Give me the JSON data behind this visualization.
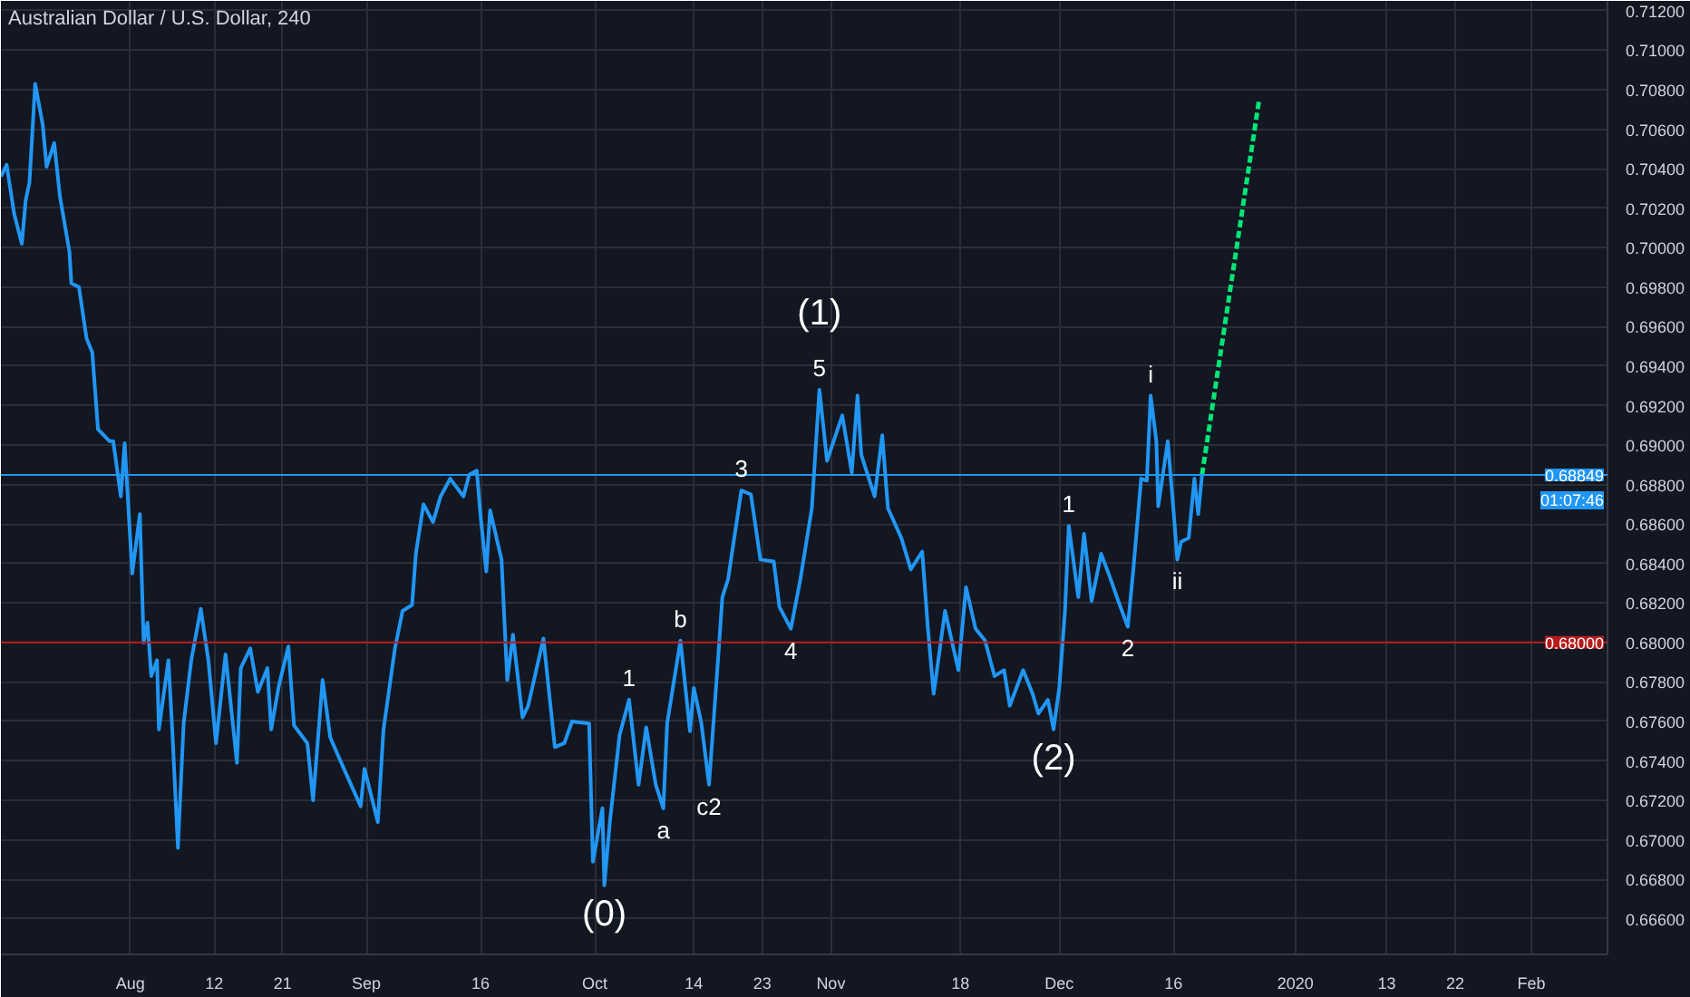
{
  "chart_data": {
    "type": "line",
    "title": "Australian Dollar / U.S. Dollar, 240",
    "xlim": [
      "2019-07-15",
      "2020-02-11"
    ],
    "xticks": [
      {
        "value": "2019-08-01",
        "label": "Aug"
      },
      {
        "value": "2019-08-12",
        "label": "12"
      },
      {
        "value": "2019-08-21",
        "label": "21"
      },
      {
        "value": "2019-09-01",
        "label": "Sep"
      },
      {
        "value": "2019-09-16",
        "label": "16"
      },
      {
        "value": "2019-10-01",
        "label": "Oct"
      },
      {
        "value": "2019-10-14",
        "label": "14"
      },
      {
        "value": "2019-10-23",
        "label": "23"
      },
      {
        "value": "2019-11-01",
        "label": "Nov"
      },
      {
        "value": "2019-11-18",
        "label": "18"
      },
      {
        "value": "2019-12-01",
        "label": "Dec"
      },
      {
        "value": "2019-12-16",
        "label": "16"
      },
      {
        "value": "2020-01-01",
        "label": "2020"
      },
      {
        "value": "2020-01-13",
        "label": "13"
      },
      {
        "value": "2020-01-22",
        "label": "22"
      },
      {
        "value": "2020-02-01",
        "label": "Feb"
      }
    ],
    "ylim": [
      0.6642,
      0.7125
    ],
    "yticks": [
      {
        "value": 0.666,
        "label": "0.66600"
      },
      {
        "value": 0.668,
        "label": "0.66800"
      },
      {
        "value": 0.67,
        "label": "0.67000"
      },
      {
        "value": 0.672,
        "label": "0.67200"
      },
      {
        "value": 0.674,
        "label": "0.67400"
      },
      {
        "value": 0.676,
        "label": "0.67600"
      },
      {
        "value": 0.678,
        "label": "0.67800"
      },
      {
        "value": 0.68,
        "label": "0.68000"
      },
      {
        "value": 0.682,
        "label": "0.68200"
      },
      {
        "value": 0.684,
        "label": "0.68400"
      },
      {
        "value": 0.686,
        "label": "0.68600"
      },
      {
        "value": 0.688,
        "label": "0.68800"
      },
      {
        "value": 0.69,
        "label": "0.69000"
      },
      {
        "value": 0.692,
        "label": "0.69200"
      },
      {
        "value": 0.694,
        "label": "0.69400"
      },
      {
        "value": 0.696,
        "label": "0.69600"
      },
      {
        "value": 0.698,
        "label": "0.69800"
      },
      {
        "value": 0.7,
        "label": "0.70000"
      },
      {
        "value": 0.702,
        "label": "0.70200"
      },
      {
        "value": 0.704,
        "label": "0.70400"
      },
      {
        "value": 0.706,
        "label": "0.70600"
      },
      {
        "value": 0.708,
        "label": "0.70800"
      },
      {
        "value": 0.71,
        "label": "0.71000"
      },
      {
        "value": 0.712,
        "label": "0.71200"
      }
    ],
    "grid": true,
    "series": [
      {
        "color": "#2196f3",
        "line_style": "solid",
        "x": [
          "2019-07-15T00:00",
          "2019-07-15T18:00",
          "2019-07-16T18:00",
          "2019-07-17T18:00",
          "2019-07-18T06:00",
          "2019-07-18T18:00",
          "2019-07-19T12:00",
          "2019-07-20T12:00",
          "2019-07-21T00:00",
          "2019-07-22T00:00",
          "2019-07-22T18:00",
          "2019-07-24T00:00",
          "2019-07-24T06:00",
          "2019-07-25T06:00",
          "2019-07-26T06:00",
          "2019-07-27T00:00",
          "2019-07-27T18:00",
          "2019-07-29T06:00",
          "2019-07-29T18:00",
          "2019-07-30T18:00",
          "2019-07-31T06:00",
          "2019-08-01T06:00",
          "2019-08-02T06:00",
          "2019-08-02T18:00",
          "2019-08-03T06:00",
          "2019-08-03T18:00",
          "2019-08-04T12:00",
          "2019-08-04T18:00",
          "2019-08-06T00:00",
          "2019-08-06T12:00",
          "2019-08-07T06:00",
          "2019-08-08T00:00",
          "2019-08-09T00:00",
          "2019-08-10T06:00",
          "2019-08-11T06:00",
          "2019-08-12T06:00",
          "2019-08-13T12:00",
          "2019-08-15T00:00",
          "2019-08-15T12:00",
          "2019-08-16T18:00",
          "2019-08-17T18:00",
          "2019-08-19T00:00",
          "2019-08-19T12:00",
          "2019-08-20T12:00",
          "2019-08-21T18:00",
          "2019-08-22T12:00",
          "2019-08-24T06:00",
          "2019-08-25T00:00",
          "2019-08-26T06:00",
          "2019-08-27T06:00",
          "2019-08-28T06:00",
          "2019-08-29T18:00",
          "2019-08-31T06:00",
          "2019-08-31T18:00",
          "2019-09-02T12:00",
          "2019-09-03T06:00",
          "2019-09-04T18:00",
          "2019-09-05T18:00",
          "2019-09-07T00:00",
          "2019-09-07T12:00",
          "2019-09-08T12:00",
          "2019-09-09T18:00",
          "2019-09-10T18:00",
          "2019-09-12T00:00",
          "2019-09-13T18:00",
          "2019-09-14T12:00",
          "2019-09-15T12:00",
          "2019-09-16T00:00",
          "2019-09-16T18:00",
          "2019-09-17T06:00",
          "2019-09-18T18:00",
          "2019-09-19T12:00",
          "2019-09-20T06:00",
          "2019-09-21T12:00",
          "2019-09-22T06:00",
          "2019-09-24T06:00",
          "2019-09-25T18:00",
          "2019-09-27T00:00",
          "2019-09-28T00:00",
          "2019-09-30T06:00",
          "2019-09-30T18:00",
          "2019-10-02T00:00",
          "2019-10-02T06:00",
          "2019-10-03T00:00",
          "2019-10-04T06:00",
          "2019-10-05T12:00",
          "2019-10-06T18:00",
          "2019-10-07T18:00",
          "2019-10-09T00:00",
          "2019-10-10T00:00",
          "2019-10-10T12:00",
          "2019-10-12T06:00",
          "2019-10-13T12:00",
          "2019-10-14T00:00",
          "2019-10-15T00:00",
          "2019-10-16T00:00",
          "2019-10-17T06:00",
          "2019-10-17T18:00",
          "2019-10-18T12:00",
          "2019-10-20T06:00",
          "2019-10-21T12:00",
          "2019-10-22T18:00",
          "2019-10-24T12:00",
          "2019-10-25T06:00",
          "2019-10-26T18:00",
          "2019-10-28T00:00",
          "2019-10-29T12:00",
          "2019-10-30T12:00",
          "2019-10-31T12:00",
          "2019-11-02T12:00",
          "2019-11-03T18:00",
          "2019-11-04T12:00",
          "2019-11-05T00:00",
          "2019-11-06T18:00",
          "2019-11-07T18:00",
          "2019-11-08T12:00",
          "2019-11-10T06:00",
          "2019-11-11T12:00",
          "2019-11-13T00:00",
          "2019-11-13T18:00",
          "2019-11-14T12:00",
          "2019-11-16T00:00",
          "2019-11-17T18:00",
          "2019-11-18T18:00",
          "2019-11-20T00:00",
          "2019-11-21T06:00",
          "2019-11-22T12:00",
          "2019-11-23T18:00",
          "2019-11-24T12:00",
          "2019-11-26T06:00",
          "2019-11-27T12:00",
          "2019-11-28T06:00",
          "2019-11-29T12:00",
          "2019-11-30T06:00",
          "2019-12-01T00:00",
          "2019-12-01T18:00",
          "2019-12-02T06:00",
          "2019-12-03T12:00",
          "2019-12-04T06:00",
          "2019-12-05T06:00",
          "2019-12-06T12:00",
          "2019-12-07T18:00",
          "2019-12-08T18:00",
          "2019-12-10T00:00",
          "2019-12-10T18:00",
          "2019-12-11T18:00",
          "2019-12-12T12:00",
          "2019-12-13T00:00",
          "2019-12-13T18:00",
          "2019-12-14T00:00",
          "2019-12-15T06:00",
          "2019-12-16T00:00",
          "2019-12-16T12:00",
          "2019-12-17T00:00",
          "2019-12-18T00:00",
          "2019-12-18T18:00",
          "2019-12-19T06:00",
          "2019-12-19T18:00"
        ],
        "values": [
          0.7036,
          0.7042,
          0.7017,
          0.7002,
          0.7024,
          0.7033,
          0.7083,
          0.7062,
          0.7041,
          0.7053,
          0.7026,
          0.6998,
          0.6982,
          0.698,
          0.6954,
          0.6947,
          0.6908,
          0.6902,
          0.6902,
          0.6874,
          0.6901,
          0.6835,
          0.6865,
          0.68,
          0.681,
          0.6783,
          0.6791,
          0.6756,
          0.6791,
          0.6756,
          0.6696,
          0.6759,
          0.6791,
          0.6817,
          0.6791,
          0.6749,
          0.6794,
          0.6739,
          0.6787,
          0.6797,
          0.6775,
          0.6787,
          0.6756,
          0.6778,
          0.6798,
          0.6758,
          0.6749,
          0.672,
          0.6781,
          0.6752,
          0.6743,
          0.673,
          0.6717,
          0.6736,
          0.6709,
          0.6756,
          0.6797,
          0.6816,
          0.6819,
          0.6845,
          0.687,
          0.6861,
          0.6874,
          0.6883,
          0.6874,
          0.6885,
          0.6887,
          0.6864,
          0.6836,
          0.6867,
          0.6842,
          0.6781,
          0.6804,
          0.6762,
          0.6768,
          0.6802,
          0.6747,
          0.6749,
          0.676,
          0.6759,
          0.6689,
          0.6716,
          0.6677,
          0.671,
          0.6753,
          0.6771,
          0.6728,
          0.6757,
          0.6728,
          0.6716,
          0.6759,
          0.6801,
          0.6755,
          0.6777,
          0.6759,
          0.6728,
          0.6795,
          0.6823,
          0.6832,
          0.6877,
          0.6875,
          0.6842,
          0.6841,
          0.6818,
          0.6807,
          0.6832,
          0.6868,
          0.6928,
          0.6892,
          0.6915,
          0.6886,
          0.6925,
          0.6895,
          0.6874,
          0.6905,
          0.6868,
          0.6853,
          0.6837,
          0.6846,
          0.6807,
          0.6774,
          0.6816,
          0.6786,
          0.6828,
          0.6807,
          0.6801,
          0.6783,
          0.6786,
          0.6768,
          0.6786,
          0.6774,
          0.6764,
          0.6771,
          0.6756,
          0.6777,
          0.6816,
          0.6859,
          0.6823,
          0.6855,
          0.6821,
          0.6845,
          0.6832,
          0.6821,
          0.6808,
          0.6838,
          0.6883,
          0.6882,
          0.6925,
          0.6902,
          0.6869,
          0.6902,
          0.6867,
          0.6842,
          0.6851,
          0.6853,
          0.6883,
          0.6865,
          0.6885
        ]
      },
      {
        "color": "#00e676",
        "line_style": "dashed",
        "x": [
          "2019-12-19T18:00",
          "2019-12-27T06:00"
        ],
        "values": [
          0.6885,
          0.7075
        ]
      }
    ],
    "ref_lines": [
      {
        "axis": "y",
        "value": 0.68849,
        "label": "0.68849",
        "color": "#2196f3"
      },
      {
        "axis": "y",
        "value": 0.68,
        "label": "0.68000",
        "color": "#b71c1c"
      }
    ],
    "annotations": [
      {
        "text": "(0)",
        "x": "2019-10-02T06:00",
        "y": 0.6677
      },
      {
        "text": "1",
        "x": "2019-10-05T12:00",
        "y": 0.6771
      },
      {
        "text": "a",
        "x": "2019-10-10T00:00",
        "y": 0.6716
      },
      {
        "text": "b",
        "x": "2019-10-12T06:00",
        "y": 0.6801
      },
      {
        "text": "c2",
        "x": "2019-10-16T00:00",
        "y": 0.6728
      },
      {
        "text": "3",
        "x": "2019-10-20T06:00",
        "y": 0.6877
      },
      {
        "text": "4",
        "x": "2019-10-26T18:00",
        "y": 0.6807
      },
      {
        "text": "5",
        "x": "2019-10-30T12:00",
        "y": 0.6928
      },
      {
        "text": "(1)",
        "x": "2019-10-30T12:00",
        "y": 0.6928
      },
      {
        "text": "(2)",
        "x": "2019-11-30T06:00",
        "y": 0.6756
      },
      {
        "text": "1",
        "x": "2019-12-02T06:00",
        "y": 0.6859
      },
      {
        "text": "2",
        "x": "2019-12-10T00:00",
        "y": 0.6808
      },
      {
        "text": "i",
        "x": "2019-12-13T00:00",
        "y": 0.6925
      },
      {
        "text": "ii",
        "x": "2019-12-16T12:00",
        "y": 0.6842
      },
      "01:07:46"
    ]
  }
}
